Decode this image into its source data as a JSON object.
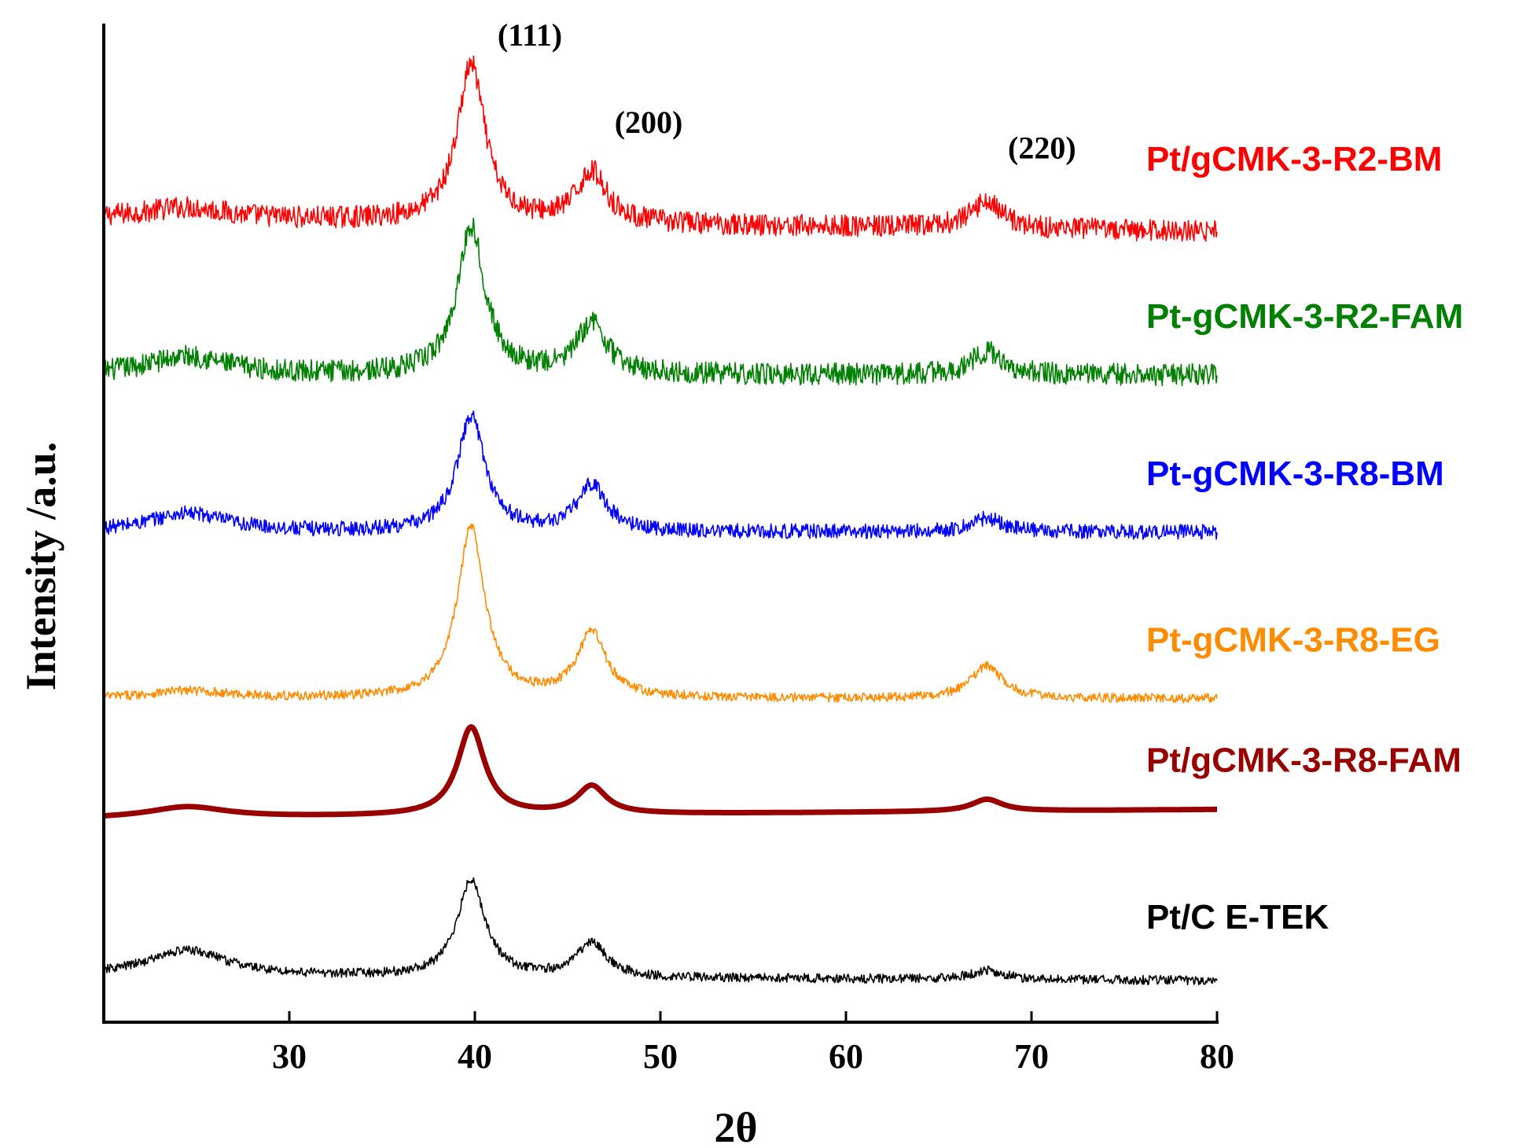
{
  "chart_data": {
    "type": "line",
    "title": "",
    "xlabel": "2θ",
    "ylabel": "Intensity /a.u.",
    "xlim": [
      20,
      80
    ],
    "ylim": [
      0,
      10.8
    ],
    "x_ticks": [
      30,
      40,
      50,
      60,
      70,
      80
    ],
    "x_tick_labels": [
      "30",
      "40",
      "50",
      "60",
      "70",
      "80"
    ],
    "y_ticks_shown": false,
    "legend": "labels placed at right of each trace",
    "annotations": [
      {
        "label": "(111)",
        "x": 40.0
      },
      {
        "label": "(200)",
        "x": 46.4
      },
      {
        "label": "(220)",
        "x": 67.6
      }
    ],
    "peak_positions": [
      24.5,
      39.8,
      46.3,
      67.6
    ],
    "peak_widths": [
      2.6,
      0.9,
      0.95,
      1.0
    ],
    "series": [
      {
        "name": "Pt/gCMK-3-R2-BM",
        "color": "#ff0000",
        "baseline": 8.7,
        "tail_end": 8.55,
        "peak_heights": [
          0.12,
          1.7,
          0.55,
          0.3
        ],
        "noise": 0.12,
        "line_width": 1.6
      },
      {
        "name": "Pt-gCMK-3-R2-FAM",
        "color": "#008000",
        "baseline": 7.0,
        "tail_end": 7.0,
        "peak_heights": [
          0.2,
          1.6,
          0.55,
          0.25
        ],
        "noise": 0.12,
        "line_width": 1.6
      },
      {
        "name": "Pt-gCMK-3-R8-BM",
        "color": "#0000ff",
        "baseline": 5.3,
        "tail_end": 5.3,
        "peak_heights": [
          0.2,
          1.25,
          0.5,
          0.15
        ],
        "noise": 0.08,
        "line_width": 1.6
      },
      {
        "name": "Pt-gCMK-3-R8-EG",
        "color": "#ff8c00",
        "baseline": 3.5,
        "tail_end": 3.5,
        "peak_heights": [
          0.08,
          1.85,
          0.7,
          0.35
        ],
        "noise": 0.05,
        "line_width": 1.6
      },
      {
        "name": "Pt/gCMK-3-R8-FAM",
        "color": "#990000",
        "baseline": 2.2,
        "tail_end": 2.3,
        "peak_heights": [
          0.12,
          0.95,
          0.3,
          0.13
        ],
        "noise": 0.0,
        "line_width": 7
      },
      {
        "name": "Pt/C E-TEK",
        "color": "#000000",
        "baseline": 0.5,
        "tail_end": 0.45,
        "peak_heights": [
          0.28,
          1.05,
          0.38,
          0.1
        ],
        "noise": 0.05,
        "line_width": 1.6
      }
    ]
  }
}
